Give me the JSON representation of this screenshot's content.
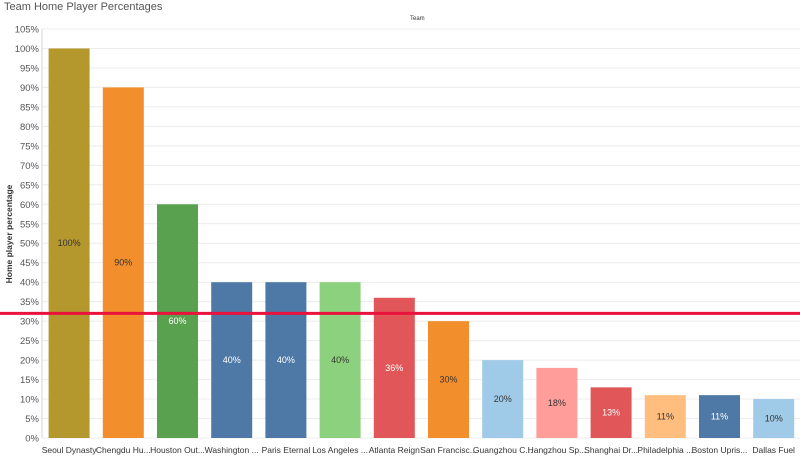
{
  "page": {
    "title": "Team Home Player Percentages",
    "column_header": "Team"
  },
  "chart_data": {
    "type": "bar",
    "title": "Team Home Player Percentages",
    "xlabel": "",
    "ylabel": "Home player percentage",
    "ylim": [
      0,
      105
    ],
    "y_ticks": [
      "0%",
      "5%",
      "10%",
      "15%",
      "20%",
      "25%",
      "30%",
      "35%",
      "40%",
      "45%",
      "50%",
      "55%",
      "60%",
      "65%",
      "70%",
      "75%",
      "80%",
      "85%",
      "90%",
      "95%",
      "100%",
      "105%"
    ],
    "y_tick_values": [
      0,
      5,
      10,
      15,
      20,
      25,
      30,
      35,
      40,
      45,
      50,
      55,
      60,
      65,
      70,
      75,
      80,
      85,
      90,
      95,
      100,
      105
    ],
    "grid": true,
    "reference_line": {
      "value": 32,
      "color": "#e8123c"
    },
    "categories": [
      "Seoul Dynasty",
      "Chengdu Hu...",
      "Houston Out...",
      "Washington ...",
      "Paris Eternal",
      "Los Angeles ...",
      "Atlanta Reign",
      "San Francisc...",
      "Guangzhou C...",
      "Hangzhou Sp...",
      "Shanghai Dr...",
      "Philadelphia ...",
      "Boston Upris...",
      "Dallas Fuel"
    ],
    "values": [
      100,
      90,
      60,
      40,
      40,
      40,
      36,
      30,
      20,
      18,
      13,
      11,
      11,
      10
    ],
    "data_labels": [
      "100%",
      "90%",
      "60%",
      "40%",
      "40%",
      "40%",
      "36%",
      "30%",
      "20%",
      "18%",
      "13%",
      "11%",
      "11%",
      "10%"
    ],
    "colors": [
      "#b5982d",
      "#f28e2b",
      "#59a14f",
      "#4e79a7",
      "#4e79a7",
      "#8cd17d",
      "#e15759",
      "#f28e2b",
      "#a0cbe8",
      "#ff9d9a",
      "#e15759",
      "#ffbe7d",
      "#4e79a7",
      "#a0cbe8"
    ],
    "label_colors": [
      "#333333",
      "#333333",
      "#ffffff",
      "#ffffff",
      "#ffffff",
      "#333333",
      "#ffffff",
      "#333333",
      "#333333",
      "#333333",
      "#ffffff",
      "#333333",
      "#ffffff",
      "#333333"
    ]
  }
}
